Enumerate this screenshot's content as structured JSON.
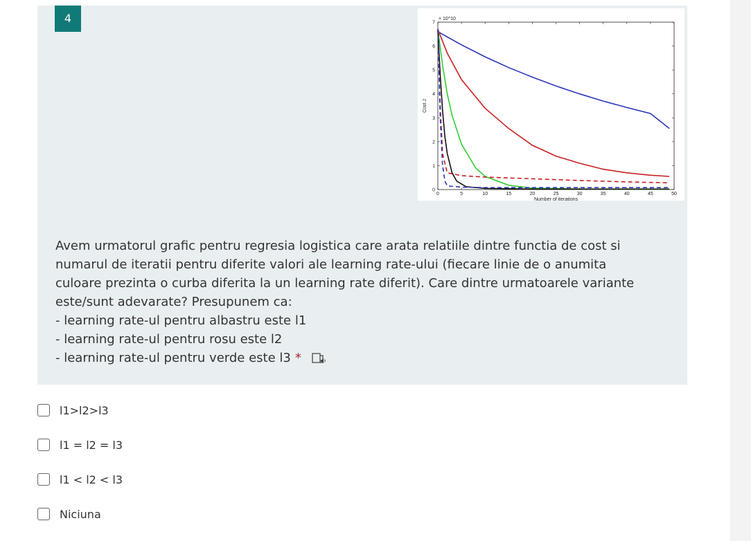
{
  "question": {
    "number": "4",
    "text_lines": [
      "Avem urmatorul grafic pentru regresia logistica care arata relatiile dintre functia de cost si",
      "numarul de iteratii pentru diferite valori ale learning rate-ului (fiecare linie de o anumita",
      "culoare prezinta o curba diferita la un learning rate diferit). Care dintre urmatoarele variante",
      "este/sunt adevarate? Presupunem ca:",
      "- learning rate-ul pentru albastru este l1",
      "- learning rate-ul pentru rosu este l2",
      "- learning rate-ul pentru verde este l3"
    ],
    "required_mark": "*",
    "immersive_reader_icon": "immersive-reader-icon"
  },
  "options": [
    {
      "label": "l1>l2>l3"
    },
    {
      "label": "l1 = l2 = l3"
    },
    {
      "label": "l1 < l2 < l3"
    },
    {
      "label": "Niciuna"
    }
  ],
  "colors": {
    "accent": "#0f7a77",
    "card_background": "#e9eff1",
    "required": "#a4262c"
  },
  "chart_data": {
    "type": "line",
    "ylabel": "Cost J",
    "xlabel": "Number of iterations",
    "y_multiplier": "× 10^10",
    "xlim": [
      0,
      50
    ],
    "ylim": [
      0,
      7
    ],
    "xticks": [
      0,
      5,
      10,
      15,
      20,
      25,
      30,
      35,
      40,
      45,
      50
    ],
    "yticks": [
      0,
      1,
      2,
      3,
      4,
      5,
      6,
      7
    ],
    "series": [
      {
        "color": "#2a35b8",
        "style": "solid",
        "x": [
          0,
          5,
          10,
          15,
          20,
          25,
          30,
          35,
          40,
          45,
          49
        ],
        "y": [
          6.6,
          6.05,
          5.55,
          5.1,
          4.7,
          4.33,
          4.0,
          3.7,
          3.43,
          3.18,
          2.55
        ]
      },
      {
        "color": "#c82020",
        "style": "solid",
        "x": [
          0,
          2,
          5,
          10,
          15,
          20,
          25,
          30,
          35,
          40,
          45,
          49
        ],
        "y": [
          6.7,
          5.7,
          4.6,
          3.4,
          2.55,
          1.85,
          1.4,
          1.1,
          0.85,
          0.7,
          0.6,
          0.55
        ]
      },
      {
        "color": "#33cc33",
        "style": "solid",
        "x": [
          0,
          1,
          2,
          3,
          5,
          8,
          10,
          15,
          20,
          30,
          49
        ],
        "y": [
          6.7,
          5.2,
          4.0,
          3.1,
          1.9,
          0.9,
          0.55,
          0.18,
          0.06,
          0.02,
          0.01
        ]
      },
      {
        "color": "#111111",
        "style": "solid",
        "x": [
          0,
          0.5,
          1,
          1.5,
          2,
          3,
          4,
          6,
          10,
          20,
          49
        ],
        "y": [
          6.7,
          4.8,
          3.3,
          2.2,
          1.5,
          0.7,
          0.35,
          0.12,
          0.05,
          0.02,
          0.02
        ]
      },
      {
        "color": "#c82020",
        "style": "dashed",
        "x": [
          0,
          0.5,
          1,
          2,
          5,
          10,
          20,
          30,
          40,
          49
        ],
        "y": [
          6.7,
          3.5,
          1.5,
          0.7,
          0.58,
          0.52,
          0.45,
          0.38,
          0.32,
          0.28
        ]
      },
      {
        "color": "#2a35b8",
        "style": "dashed",
        "x": [
          0,
          0.5,
          1,
          1.5,
          2,
          5,
          10,
          49
        ],
        "y": [
          6.7,
          3.0,
          1.0,
          0.35,
          0.15,
          0.1,
          0.08,
          0.08
        ]
      }
    ]
  }
}
